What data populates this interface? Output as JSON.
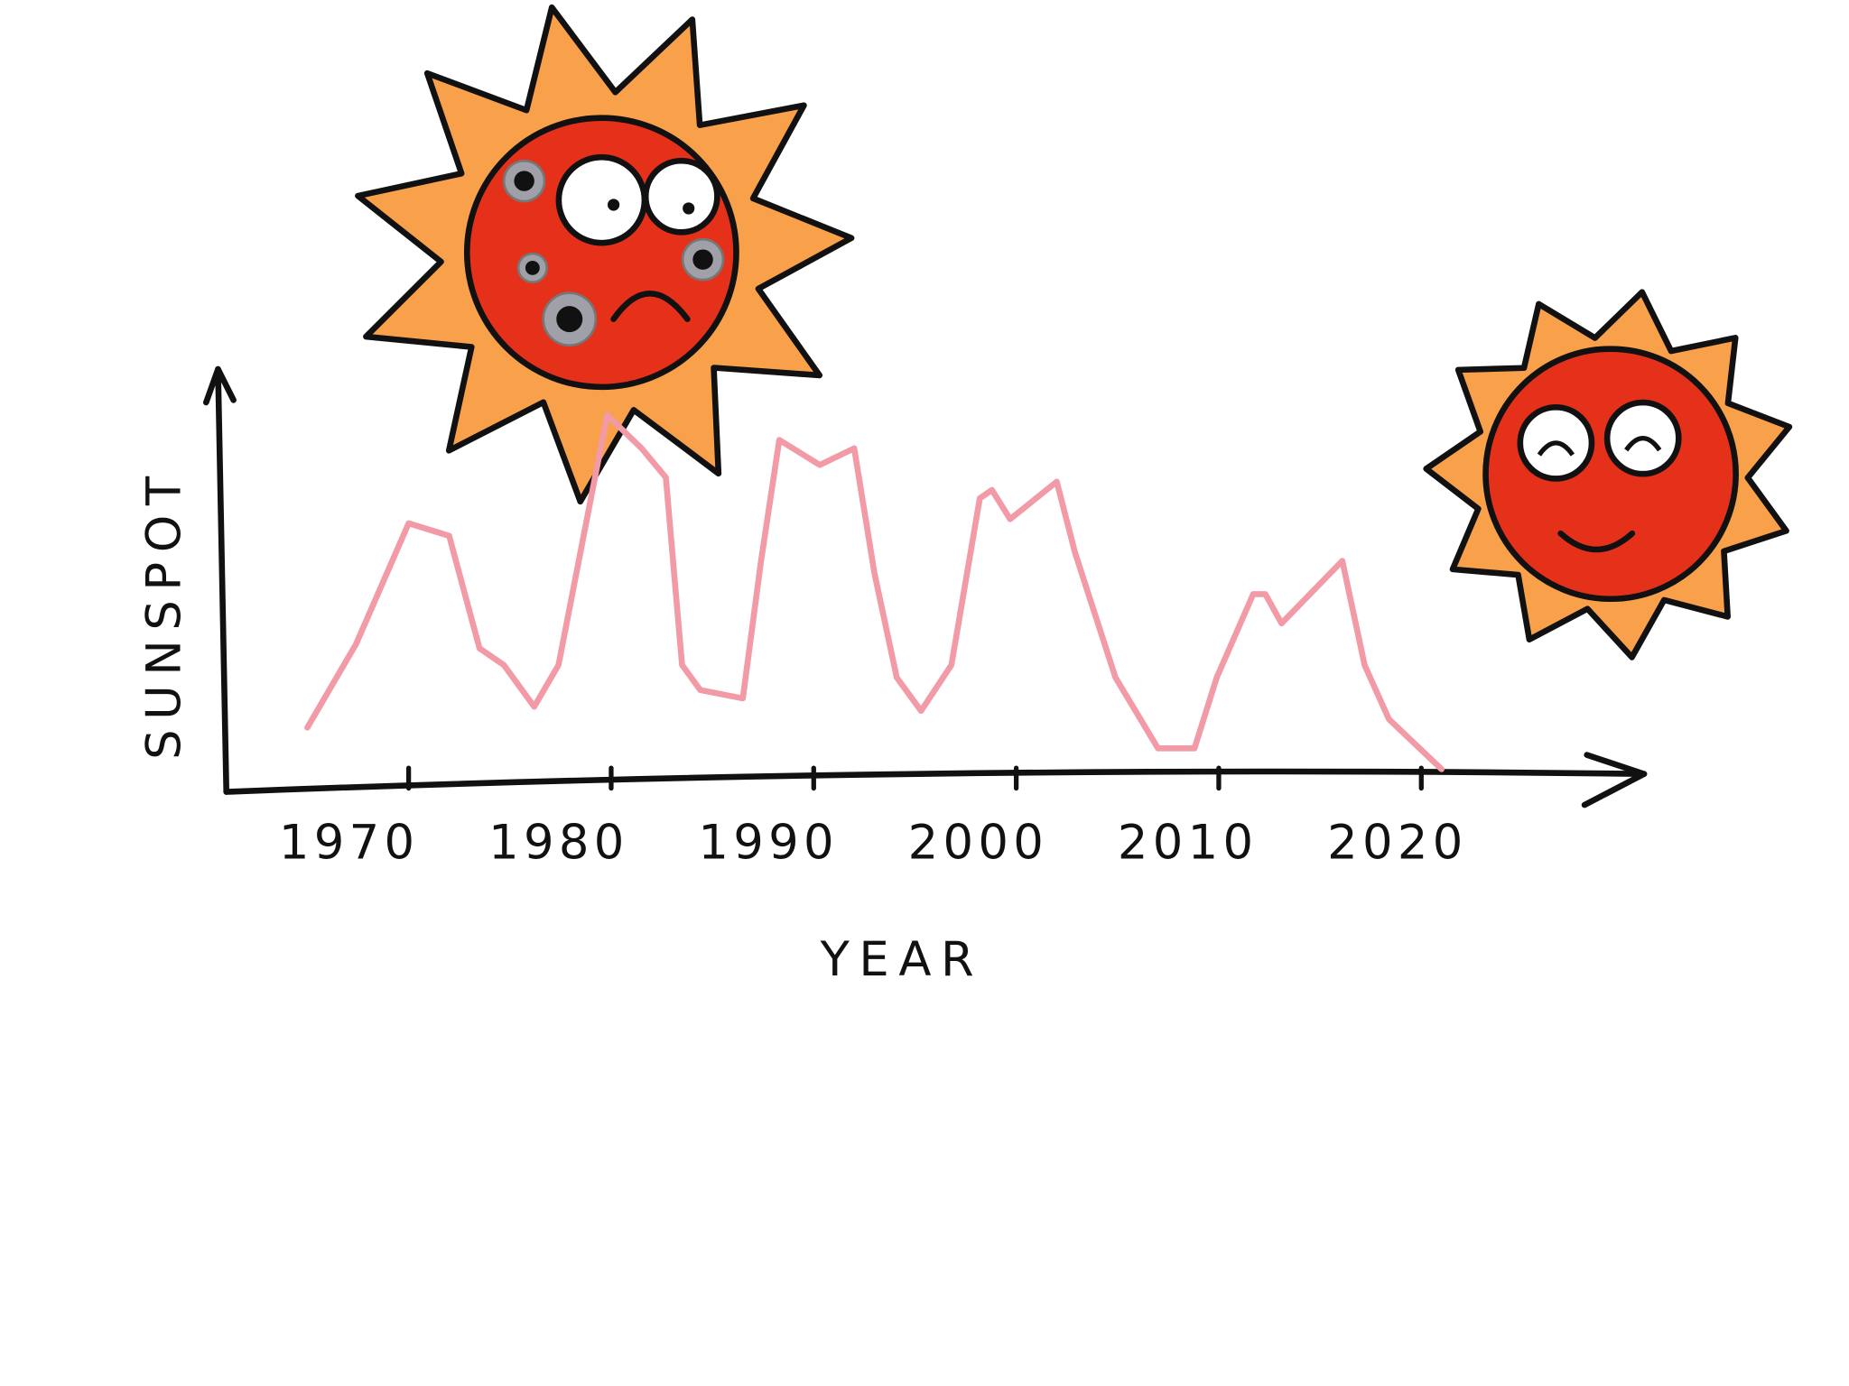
{
  "chart_data": {
    "type": "line",
    "xlabel": "YEAR",
    "ylabel": "SUNSPOT",
    "xlim": [
      1961,
      2031
    ],
    "ylim": [
      0,
      100
    ],
    "xticks": [
      1970,
      1980,
      1990,
      2000,
      2010,
      2020
    ],
    "series": [
      {
        "color": "#f29aa6",
        "x": [
          1965,
          1967.4,
          1970,
          1972,
          1973.5,
          1974.7,
          1976.2,
          1977.4,
          1979,
          1979.8,
          1981.5,
          1982.7,
          1983.5,
          1984.4,
          1986.5,
          1987.4,
          1988.3,
          1990.3,
          1992,
          1993,
          1994.1,
          1995.3,
          1996.8,
          1998.2,
          1998.8,
          1999.7,
          2002,
          2002.9,
          2004.9,
          2007,
          2008.8,
          2009.9,
          2011.7,
          2012.3,
          2013.1,
          2016.1,
          2017.2,
          2018.4,
          2021
        ],
        "values": [
          14,
          34,
          63,
          60,
          33,
          29,
          19,
          29,
          69,
          89,
          81,
          74,
          29,
          23,
          21,
          54,
          83,
          77,
          81,
          51,
          26,
          18,
          29,
          69,
          71,
          64,
          73,
          56,
          26,
          9,
          9,
          26,
          46,
          46,
          39,
          54,
          29,
          16,
          4
        ]
      }
    ]
  }
}
